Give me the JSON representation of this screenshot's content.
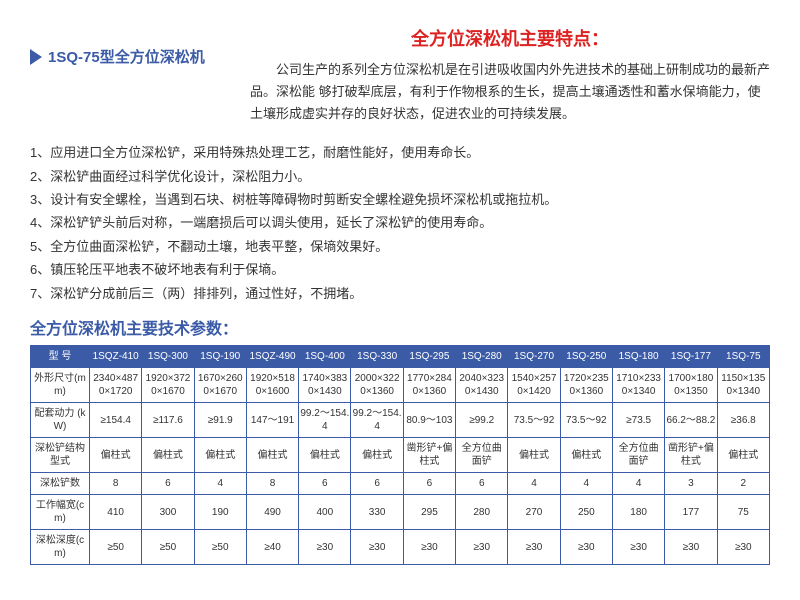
{
  "title_main": "全方位深松机主要特点：",
  "intro": "公司生产的系列全方位深松机是在引进吸收国内外先进技术的基础上研制成功的最新产品。深松能 够打破犁底层，有利于作物根系的生长，提高土壤通透性和蓄水保墒能力，使土壤形成虚实并存的良好状态，促进农业的可持续发展。",
  "model_label": "1SQ-75型全方位深松机",
  "features": [
    "1、应用进口全方位深松铲，采用特殊热处理工艺，耐磨性能好，使用寿命长。",
    "2、深松铲曲面经过科学优化设计，深松阻力小。",
    "3、设计有安全螺栓，当遇到石块、树桩等障碍物时剪断安全螺栓避免损坏深松机或拖拉机。",
    "4、深松铲铲头前后对称，一端磨损后可以调头使用，延长了深松铲的使用寿命。",
    "5、全方位曲面深松铲，不翻动土壤，地表平整，保墒效果好。",
    "6、镇压轮压平地表不破坏地表有利于保墒。",
    "7、深松铲分成前后三（两）排排列，通过性好，不拥堵。"
  ],
  "params_title": "全方位深松机主要技术参数：",
  "table": {
    "header": [
      "型 号",
      "1SQZ-410",
      "1SQ-300",
      "1SQ-190",
      "1SQZ-490",
      "1SQ-400",
      "1SQ-330",
      "1SQ-295",
      "1SQ-280",
      "1SQ-270",
      "1SQ-250",
      "1SQ-180",
      "1SQ-177",
      "1SQ-75"
    ],
    "rows": [
      [
        "外形尺寸(mm)",
        "2340×4870×1720",
        "1920×3720×1670",
        "1670×2600×1670",
        "1920×5180×1600",
        "1740×3830×1430",
        "2000×3220×1360",
        "1770×2840×1360",
        "2040×3230×1430",
        "1540×2570×1420",
        "1720×2350×1360",
        "1710×2330×1340",
        "1700×1800×1350",
        "1150×1350×1340"
      ],
      [
        "配套动力 (kW)",
        "≥154.4",
        "≥117.6",
        "≥91.9",
        "147～191",
        "99.2～154.4",
        "99.2～154.4",
        "80.9～103",
        "≥99.2",
        "73.5～92",
        "73.5～92",
        "≥73.5",
        "66.2～88.2",
        "≥36.8"
      ],
      [
        "深松铲结构型式",
        "偏柱式",
        "偏柱式",
        "偏柱式",
        "偏柱式",
        "偏柱式",
        "偏柱式",
        "凿形铲+偏柱式",
        "全方位曲面铲",
        "偏柱式",
        "偏柱式",
        "全方位曲面铲",
        "凿形铲+偏柱式",
        "偏柱式"
      ],
      [
        "深松铲数",
        "8",
        "6",
        "4",
        "8",
        "6",
        "6",
        "6",
        "6",
        "4",
        "4",
        "4",
        "3",
        "2"
      ],
      [
        "工作幅宽(cm)",
        "410",
        "300",
        "190",
        "490",
        "400",
        "330",
        "295",
        "280",
        "270",
        "250",
        "180",
        "177",
        "75"
      ],
      [
        "深松深度(cm)",
        "≥50",
        "≥50",
        "≥50",
        "≥40",
        "≥30",
        "≥30",
        "≥30",
        "≥30",
        "≥30",
        "≥30",
        "≥30",
        "≥30",
        "≥30"
      ]
    ]
  }
}
